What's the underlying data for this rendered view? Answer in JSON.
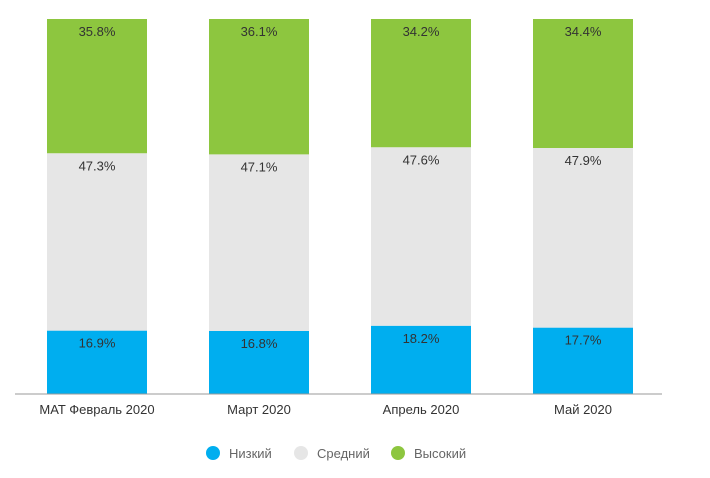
{
  "chart_data": {
    "type": "bar",
    "stacked": true,
    "percent": true,
    "categories": [
      "MAT Февраль 2020",
      "Март 2020",
      "Апрель 2020",
      "Май 2020"
    ],
    "series": [
      {
        "name": "Низкий",
        "color": "#00aeef",
        "values": [
          16.9,
          16.8,
          18.2,
          17.7
        ],
        "labels": [
          "16.9%",
          "16.8%",
          "18.2%",
          "17.7%"
        ]
      },
      {
        "name": "Средний",
        "color": "#e6e6e6",
        "values": [
          47.3,
          47.1,
          47.6,
          47.9
        ],
        "labels": [
          "47.3%",
          "47.1%",
          "47.6%",
          "47.9%"
        ]
      },
      {
        "name": "Высокий",
        "color": "#8dc63f",
        "values": [
          35.8,
          36.1,
          34.2,
          34.4
        ],
        "labels": [
          "35.8%",
          "36.1%",
          "34.2%",
          "34.4%"
        ]
      }
    ],
    "title": "",
    "xlabel": "",
    "ylabel": "",
    "ylim": [
      0,
      100
    ],
    "grid": false,
    "legend_position": "bottom"
  }
}
